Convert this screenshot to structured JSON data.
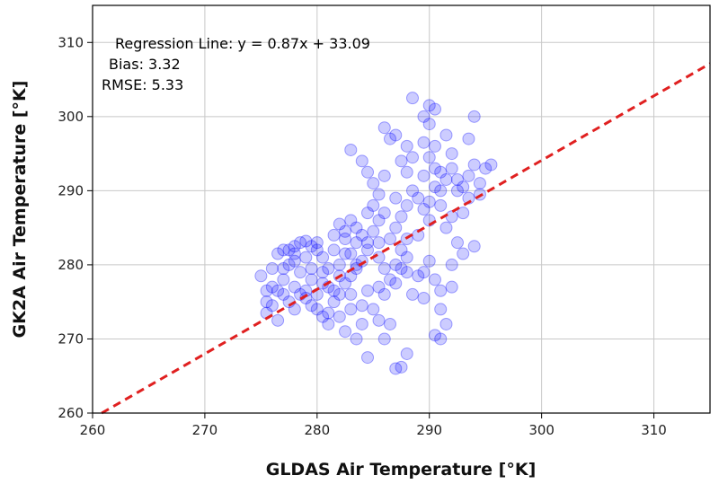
{
  "chart_data": {
    "type": "scatter",
    "xlabel": "GLDAS Air Temperature [°K]",
    "ylabel": "GK2A Air Temperature [°K]",
    "xlim": [
      260,
      315
    ],
    "ylim": [
      260,
      315
    ],
    "xticks": [
      260,
      270,
      280,
      290,
      300,
      310
    ],
    "yticks": [
      260,
      270,
      280,
      290,
      300,
      310
    ],
    "grid": true,
    "annotations": [
      "Regression Line: y = 0.87x + 33.09",
      "Bias: 3.32",
      "RMSE: 5.33"
    ],
    "regression": {
      "slope": 0.87,
      "intercept": 33.09,
      "color": "#e02020",
      "style": "dashed"
    },
    "marker_color": "#0000ff",
    "series": [
      {
        "values": [
          [
            275.0,
            278.5
          ],
          [
            275.5,
            275.0
          ],
          [
            276.0,
            279.5
          ],
          [
            276.5,
            281.5
          ],
          [
            277.0,
            278.0
          ],
          [
            277.5,
            282.0
          ],
          [
            278.0,
            280.5
          ],
          [
            278.5,
            283.0
          ],
          [
            279.0,
            283.2
          ],
          [
            279.5,
            282.5
          ],
          [
            280.0,
            283.0
          ],
          [
            280.5,
            281.0
          ],
          [
            279.0,
            276.5
          ],
          [
            278.0,
            277.0
          ],
          [
            277.0,
            276.0
          ],
          [
            276.0,
            274.5
          ],
          [
            275.5,
            273.5
          ],
          [
            276.5,
            272.5
          ],
          [
            278.0,
            274.0
          ],
          [
            279.5,
            274.5
          ],
          [
            280.5,
            273.0
          ],
          [
            281.0,
            272.0
          ],
          [
            281.5,
            275.0
          ],
          [
            282.0,
            276.0
          ],
          [
            282.5,
            277.5
          ],
          [
            283.0,
            278.5
          ],
          [
            283.5,
            279.5
          ],
          [
            284.0,
            280.5
          ],
          [
            284.5,
            283.0
          ],
          [
            285.0,
            284.5
          ],
          [
            285.5,
            286.0
          ],
          [
            285.0,
            288.0
          ],
          [
            284.5,
            287.0
          ],
          [
            283.5,
            285.0
          ],
          [
            282.5,
            283.5
          ],
          [
            281.5,
            282.0
          ],
          [
            280.5,
            279.0
          ],
          [
            279.5,
            278.0
          ],
          [
            278.5,
            279.0
          ],
          [
            277.5,
            280.0
          ],
          [
            281.0,
            277.0
          ],
          [
            282.0,
            278.5
          ],
          [
            283.0,
            276.0
          ],
          [
            284.0,
            274.5
          ],
          [
            285.0,
            274.0
          ],
          [
            286.0,
            276.0
          ],
          [
            286.5,
            278.0
          ],
          [
            287.0,
            280.0
          ],
          [
            287.5,
            279.5
          ],
          [
            288.0,
            281.0
          ],
          [
            282.5,
            271.0
          ],
          [
            283.5,
            270.0
          ],
          [
            284.5,
            267.5
          ],
          [
            287.0,
            266.0
          ],
          [
            287.5,
            266.2
          ],
          [
            288.0,
            268.0
          ],
          [
            286.0,
            270.0
          ],
          [
            286.5,
            272.0
          ],
          [
            285.5,
            272.5
          ],
          [
            284.0,
            272.0
          ],
          [
            283.0,
            295.5
          ],
          [
            284.0,
            294.0
          ],
          [
            284.5,
            292.5
          ],
          [
            285.0,
            291.0
          ],
          [
            285.5,
            289.5
          ],
          [
            286.0,
            292.0
          ],
          [
            286.5,
            297.0
          ],
          [
            287.0,
            297.5
          ],
          [
            286.0,
            298.5
          ],
          [
            288.0,
            296.0
          ],
          [
            287.5,
            294.0
          ],
          [
            288.0,
            292.5
          ],
          [
            288.5,
            302.5
          ],
          [
            289.5,
            300.0
          ],
          [
            290.0,
            301.5
          ],
          [
            290.5,
            301.0
          ],
          [
            290.0,
            299.0
          ],
          [
            289.5,
            296.5
          ],
          [
            290.0,
            294.5
          ],
          [
            290.5,
            293.0
          ],
          [
            291.0,
            290.0
          ],
          [
            291.5,
            291.5
          ],
          [
            292.0,
            293.0
          ],
          [
            292.5,
            290.0
          ],
          [
            293.0,
            290.5
          ],
          [
            293.5,
            292.0
          ],
          [
            294.0,
            293.5
          ],
          [
            294.5,
            291.0
          ],
          [
            295.0,
            293.0
          ],
          [
            295.5,
            293.5
          ],
          [
            294.0,
            300.0
          ],
          [
            293.5,
            297.0
          ],
          [
            292.0,
            295.0
          ],
          [
            291.5,
            297.5
          ],
          [
            290.5,
            296.0
          ],
          [
            289.0,
            289.0
          ],
          [
            288.5,
            290.0
          ],
          [
            288.0,
            288.0
          ],
          [
            287.5,
            286.5
          ],
          [
            287.0,
            285.0
          ],
          [
            289.5,
            287.5
          ],
          [
            290.0,
            288.5
          ],
          [
            291.0,
            288.0
          ],
          [
            292.0,
            286.5
          ],
          [
            293.0,
            287.0
          ],
          [
            291.5,
            285.0
          ],
          [
            292.5,
            283.0
          ],
          [
            293.0,
            281.5
          ],
          [
            294.0,
            282.5
          ],
          [
            292.0,
            280.0
          ],
          [
            290.0,
            280.5
          ],
          [
            289.5,
            279.0
          ],
          [
            290.5,
            278.0
          ],
          [
            291.0,
            276.5
          ],
          [
            292.0,
            277.0
          ],
          [
            291.0,
            274.0
          ],
          [
            291.5,
            272.0
          ],
          [
            290.5,
            270.5
          ],
          [
            291.0,
            270.0
          ],
          [
            289.5,
            275.5
          ],
          [
            288.5,
            276.0
          ],
          [
            289.0,
            278.5
          ],
          [
            288.0,
            279.0
          ],
          [
            287.5,
            282.0
          ],
          [
            286.5,
            283.5
          ],
          [
            281.0,
            279.5
          ],
          [
            282.0,
            280.0
          ],
          [
            283.0,
            281.5
          ],
          [
            281.5,
            284.0
          ],
          [
            282.5,
            284.5
          ],
          [
            283.5,
            283.0
          ],
          [
            284.0,
            284.0
          ],
          [
            279.0,
            281.0
          ],
          [
            278.0,
            281.5
          ],
          [
            277.0,
            282.0
          ],
          [
            276.0,
            277.0
          ],
          [
            277.5,
            275.0
          ],
          [
            279.0,
            275.5
          ],
          [
            280.0,
            276.0
          ],
          [
            280.0,
            274.0
          ],
          [
            281.0,
            273.5
          ],
          [
            282.0,
            273.0
          ],
          [
            283.0,
            274.0
          ],
          [
            284.5,
            276.5
          ],
          [
            285.5,
            277.0
          ],
          [
            286.0,
            279.5
          ],
          [
            287.0,
            277.5
          ],
          [
            285.5,
            281.0
          ],
          [
            284.5,
            282.0
          ],
          [
            283.5,
            280.0
          ],
          [
            282.5,
            281.5
          ],
          [
            281.5,
            276.5
          ],
          [
            280.5,
            277.5
          ],
          [
            279.5,
            279.5
          ],
          [
            278.5,
            276.0
          ],
          [
            276.5,
            276.5
          ],
          [
            275.5,
            276.5
          ],
          [
            277.0,
            279.5
          ],
          [
            278.0,
            282.5
          ],
          [
            280.0,
            282.0
          ],
          [
            286.0,
            287.0
          ],
          [
            287.0,
            289.0
          ],
          [
            285.5,
            283.0
          ],
          [
            283.0,
            286.0
          ],
          [
            282.0,
            285.5
          ],
          [
            288.5,
            294.5
          ],
          [
            289.5,
            292.0
          ],
          [
            290.5,
            290.5
          ],
          [
            291.0,
            292.5
          ],
          [
            292.5,
            291.5
          ],
          [
            290.0,
            286.0
          ],
          [
            289.0,
            284.0
          ],
          [
            288.0,
            283.5
          ],
          [
            293.5,
            289.0
          ],
          [
            294.5,
            289.5
          ]
        ]
      }
    ]
  }
}
